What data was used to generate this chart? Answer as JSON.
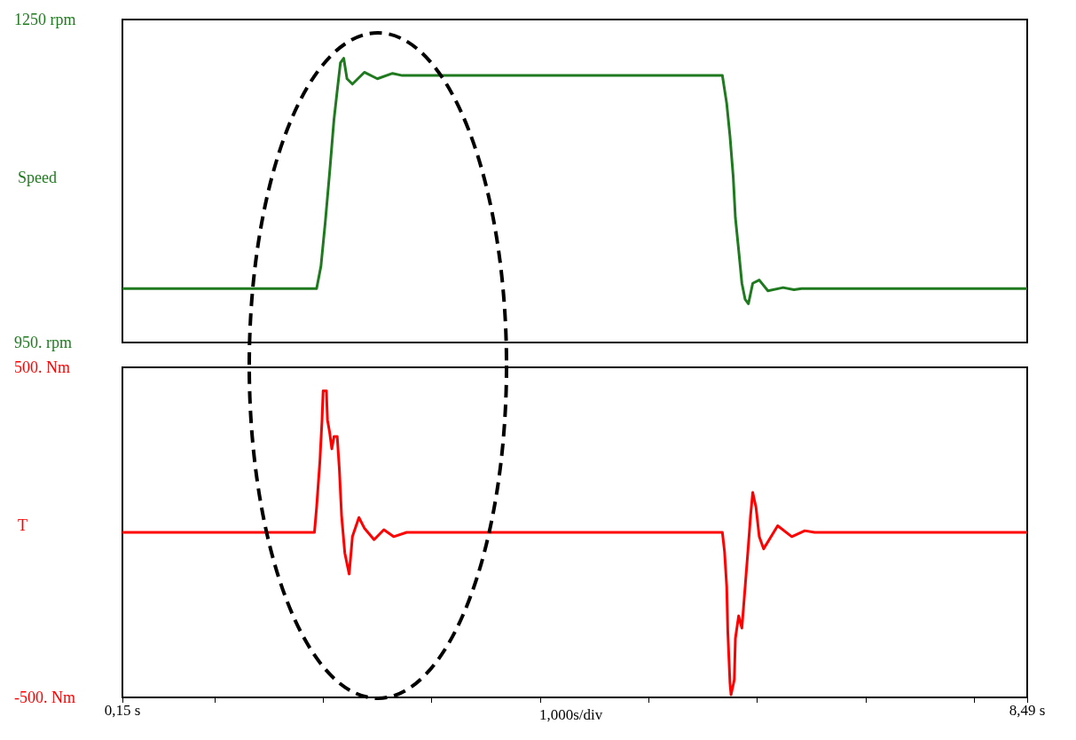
{
  "chart_data": [
    {
      "type": "line",
      "ylabel": "Speed",
      "xlim": [
        0.15,
        8.49
      ],
      "ylim": [
        950,
        1250
      ],
      "yticks": [
        {
          "value": 950,
          "label": "950. rpm"
        },
        {
          "value": 1250,
          "label": "1250 rpm"
        }
      ],
      "tick_labels": "y",
      "line_style": "solid",
      "series": [
        {
          "color": "#1f7a1f",
          "x": [
            0.15,
            1.94,
            1.98,
            2.02,
            2.06,
            2.1,
            2.13,
            2.16,
            2.19,
            2.22,
            2.27,
            2.38,
            2.5,
            2.64,
            2.73,
            5.68,
            5.72,
            5.75,
            5.78,
            5.8,
            5.83,
            5.86,
            5.89,
            5.92,
            5.96,
            6.02,
            6.1,
            6.24,
            6.34,
            6.41,
            8.49
          ],
          "values": [
            1000,
            1000,
            1021,
            1062,
            1108,
            1157,
            1184,
            1210,
            1214,
            1195,
            1190,
            1201,
            1195,
            1200,
            1198,
            1198,
            1172,
            1142,
            1104,
            1066,
            1036,
            1005,
            990,
            986,
            1005,
            1008,
            998,
            1001,
            999,
            1000,
            1000
          ]
        }
      ]
    },
    {
      "type": "line",
      "ylabel": "T",
      "xlabel": "1,000s/div",
      "xlim": [
        0.15,
        8.49
      ],
      "xticks": [
        {
          "value": 0.15,
          "label": "0,15 s"
        },
        {
          "value": 1,
          "label": null
        },
        {
          "value": 2,
          "label": null
        },
        {
          "value": 3,
          "label": null
        },
        {
          "value": 4,
          "label": null
        },
        {
          "value": 5,
          "label": null
        },
        {
          "value": 6,
          "label": null
        },
        {
          "value": 7,
          "label": null
        },
        {
          "value": 8,
          "label": null
        },
        {
          "value": 8.49,
          "label": "8,49 s"
        }
      ],
      "ylim": [
        -500,
        500
      ],
      "yticks": [
        {
          "value": -500,
          "label": "-500. Nm"
        },
        {
          "value": 500,
          "label": "500. Nm"
        }
      ],
      "line_style": "solid",
      "series": [
        {
          "color": "#ff0000",
          "x": [
            0.15,
            1.92,
            1.94,
            1.97,
            1.99,
            2.0,
            2.03,
            2.04,
            2.06,
            2.08,
            2.1,
            2.13,
            2.15,
            2.17,
            2.2,
            2.24,
            2.27,
            2.33,
            2.38,
            2.47,
            2.56,
            2.65,
            2.77,
            5.68,
            5.7,
            5.72,
            5.73,
            5.75,
            5.76,
            5.79,
            5.8,
            5.83,
            5.86,
            5.89,
            5.92,
            5.94,
            5.96,
            5.99,
            6.02,
            6.06,
            6.19,
            6.32,
            6.44,
            6.53,
            8.49
          ],
          "values": [
            0,
            0,
            76,
            215,
            341,
            429,
            429,
            341,
            303,
            253,
            290,
            290,
            189,
            51,
            -63,
            -126,
            -13,
            45,
            13,
            -22,
            8,
            -13,
            0,
            0,
            -58,
            -164,
            -300,
            -455,
            -492,
            -447,
            -321,
            -253,
            -290,
            -164,
            -38,
            51,
            121,
            76,
            -13,
            -50,
            20,
            -13,
            5,
            0,
            0
          ]
        }
      ]
    }
  ]
}
